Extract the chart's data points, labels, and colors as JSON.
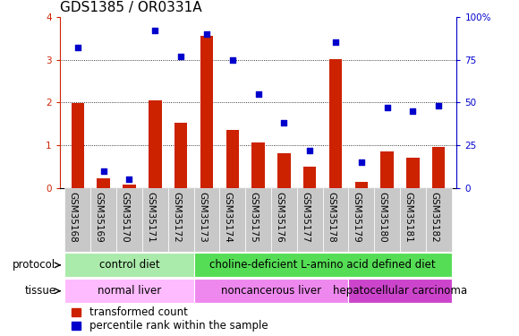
{
  "title": "GDS1385 / OR0331A",
  "samples": [
    "GSM35168",
    "GSM35169",
    "GSM35170",
    "GSM35171",
    "GSM35172",
    "GSM35173",
    "GSM35174",
    "GSM35175",
    "GSM35176",
    "GSM35177",
    "GSM35178",
    "GSM35179",
    "GSM35180",
    "GSM35181",
    "GSM35182"
  ],
  "red_values": [
    1.98,
    0.22,
    0.08,
    2.05,
    1.52,
    3.55,
    1.35,
    1.07,
    0.82,
    0.5,
    3.02,
    0.15,
    0.85,
    0.72,
    0.97
  ],
  "blue_values_pct": [
    82,
    10,
    5,
    92,
    77,
    90,
    75,
    55,
    38,
    22,
    85,
    15,
    47,
    45,
    48
  ],
  "ylim_left": [
    0,
    4
  ],
  "ylim_right": [
    0,
    100
  ],
  "yticks_left": [
    0,
    1,
    2,
    3,
    4
  ],
  "yticks_right": [
    0,
    25,
    50,
    75,
    100
  ],
  "ytick_labels_right": [
    "0",
    "25",
    "50",
    "75",
    "100%"
  ],
  "bar_color": "#cc2200",
  "dot_color": "#0000cc",
  "bg_color": "#ffffff",
  "xtick_bg": "#c8c8c8",
  "protocol_label0": "control diet",
  "protocol_label1": "choline-deficient L-amino acid defined diet",
  "protocol_color0": "#aaeaaa",
  "protocol_color1": "#55dd55",
  "tissue_label0": "normal liver",
  "tissue_label1": "noncancerous liver",
  "tissue_label2": "hepatocellular carcinoma",
  "tissue_color0": "#ffbbff",
  "tissue_color1": "#ee88ee",
  "tissue_color2": "#cc44cc",
  "legend_red": "transformed count",
  "legend_blue": "percentile rank within the sample",
  "title_fontsize": 11,
  "tick_fontsize": 7.5,
  "annot_fontsize": 8.5
}
